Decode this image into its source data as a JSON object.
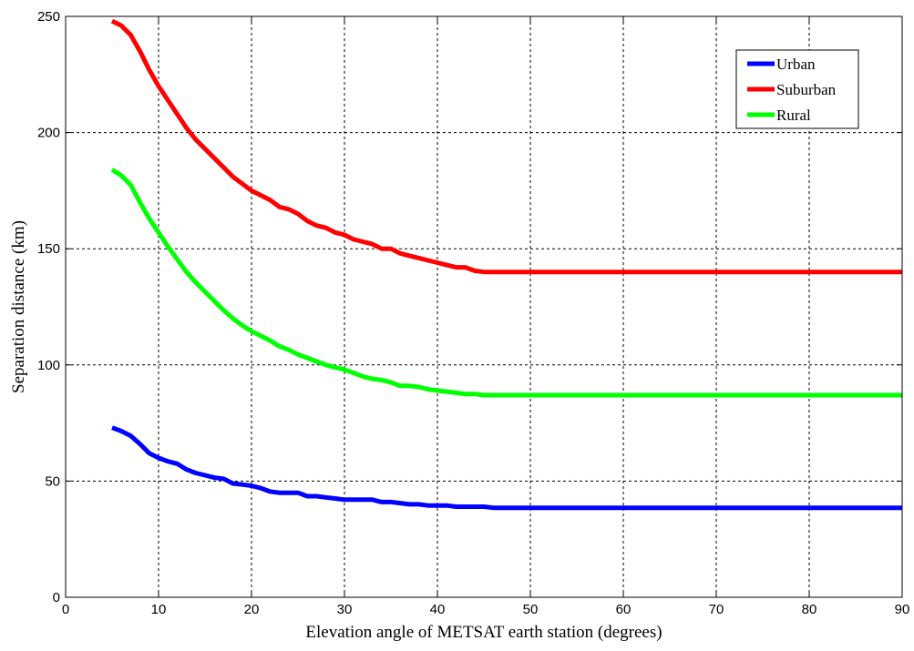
{
  "chart_data": {
    "type": "line",
    "xlabel": "Elevation angle of METSAT earth station (degrees)",
    "ylabel": "Separation distance (km)",
    "xlim": [
      0,
      90
    ],
    "ylim": [
      0,
      250
    ],
    "xticks": [
      0,
      10,
      20,
      30,
      40,
      50,
      60,
      70,
      80,
      90
    ],
    "yticks": [
      0,
      50,
      100,
      150,
      200,
      250
    ],
    "grid": true,
    "legend_position": "top-right",
    "series": [
      {
        "name": "Urban",
        "color": "#0000ff",
        "x": [
          5,
          6,
          7,
          8,
          9,
          10,
          11,
          12,
          13,
          14,
          15,
          16,
          17,
          18,
          19,
          20,
          21,
          22,
          23,
          24,
          25,
          26,
          27,
          28,
          29,
          30,
          31,
          32,
          33,
          34,
          35,
          36,
          37,
          38,
          39,
          40,
          41,
          42,
          43,
          44,
          45,
          46,
          50,
          60,
          70,
          80,
          90
        ],
        "y": [
          73,
          71.5,
          69.5,
          66,
          62,
          60,
          58.5,
          57.5,
          55,
          53.5,
          52.5,
          51.5,
          51,
          49,
          48.5,
          48,
          47,
          45.5,
          45,
          45,
          45,
          43.5,
          43.5,
          43,
          42.5,
          42,
          42,
          42,
          42,
          41,
          41,
          40.5,
          40,
          40,
          39.5,
          39.5,
          39.5,
          39,
          39,
          39,
          39,
          38.5,
          38.5,
          38.5,
          38.5,
          38.5,
          38.5
        ]
      },
      {
        "name": "Suburban",
        "color": "#ff0000",
        "x": [
          5,
          6,
          7,
          8,
          9,
          10,
          11,
          12,
          13,
          14,
          15,
          16,
          17,
          18,
          19,
          20,
          21,
          22,
          23,
          24,
          25,
          26,
          27,
          28,
          29,
          30,
          31,
          32,
          33,
          34,
          35,
          36,
          37,
          38,
          39,
          40,
          41,
          42,
          43,
          44,
          45,
          46,
          50,
          60,
          70,
          80,
          90
        ],
        "y": [
          248,
          246,
          242,
          235,
          227,
          220,
          214,
          208,
          202,
          197,
          193,
          189,
          185,
          181,
          178,
          175,
          173,
          171,
          168,
          167,
          165,
          162,
          160,
          159,
          157,
          156,
          154,
          153,
          152,
          150,
          150,
          148,
          147,
          146,
          145,
          144,
          143,
          142,
          142,
          140.5,
          140,
          140,
          140,
          140,
          140,
          140,
          140
        ]
      },
      {
        "name": "Rural",
        "color": "#00ff00",
        "x": [
          5,
          6,
          7,
          8,
          9,
          10,
          11,
          12,
          13,
          14,
          15,
          16,
          17,
          18,
          19,
          20,
          21,
          22,
          23,
          24,
          25,
          26,
          27,
          28,
          29,
          30,
          31,
          32,
          33,
          34,
          35,
          36,
          37,
          38,
          39,
          40,
          41,
          42,
          43,
          44,
          45,
          46,
          50,
          60,
          70,
          80,
          90
        ],
        "y": [
          184,
          181.5,
          177.5,
          170,
          163,
          157,
          151,
          145.5,
          140,
          135.5,
          131.5,
          127.5,
          123.5,
          120,
          117,
          114.5,
          112.5,
          110.5,
          108,
          106.5,
          104.5,
          103,
          101.5,
          100,
          99,
          98,
          96.5,
          95,
          94,
          93.5,
          92.5,
          91,
          91,
          90.5,
          89.5,
          89,
          88.5,
          88,
          87.5,
          87.5,
          87,
          87,
          87,
          87,
          87,
          87,
          87
        ]
      }
    ]
  }
}
